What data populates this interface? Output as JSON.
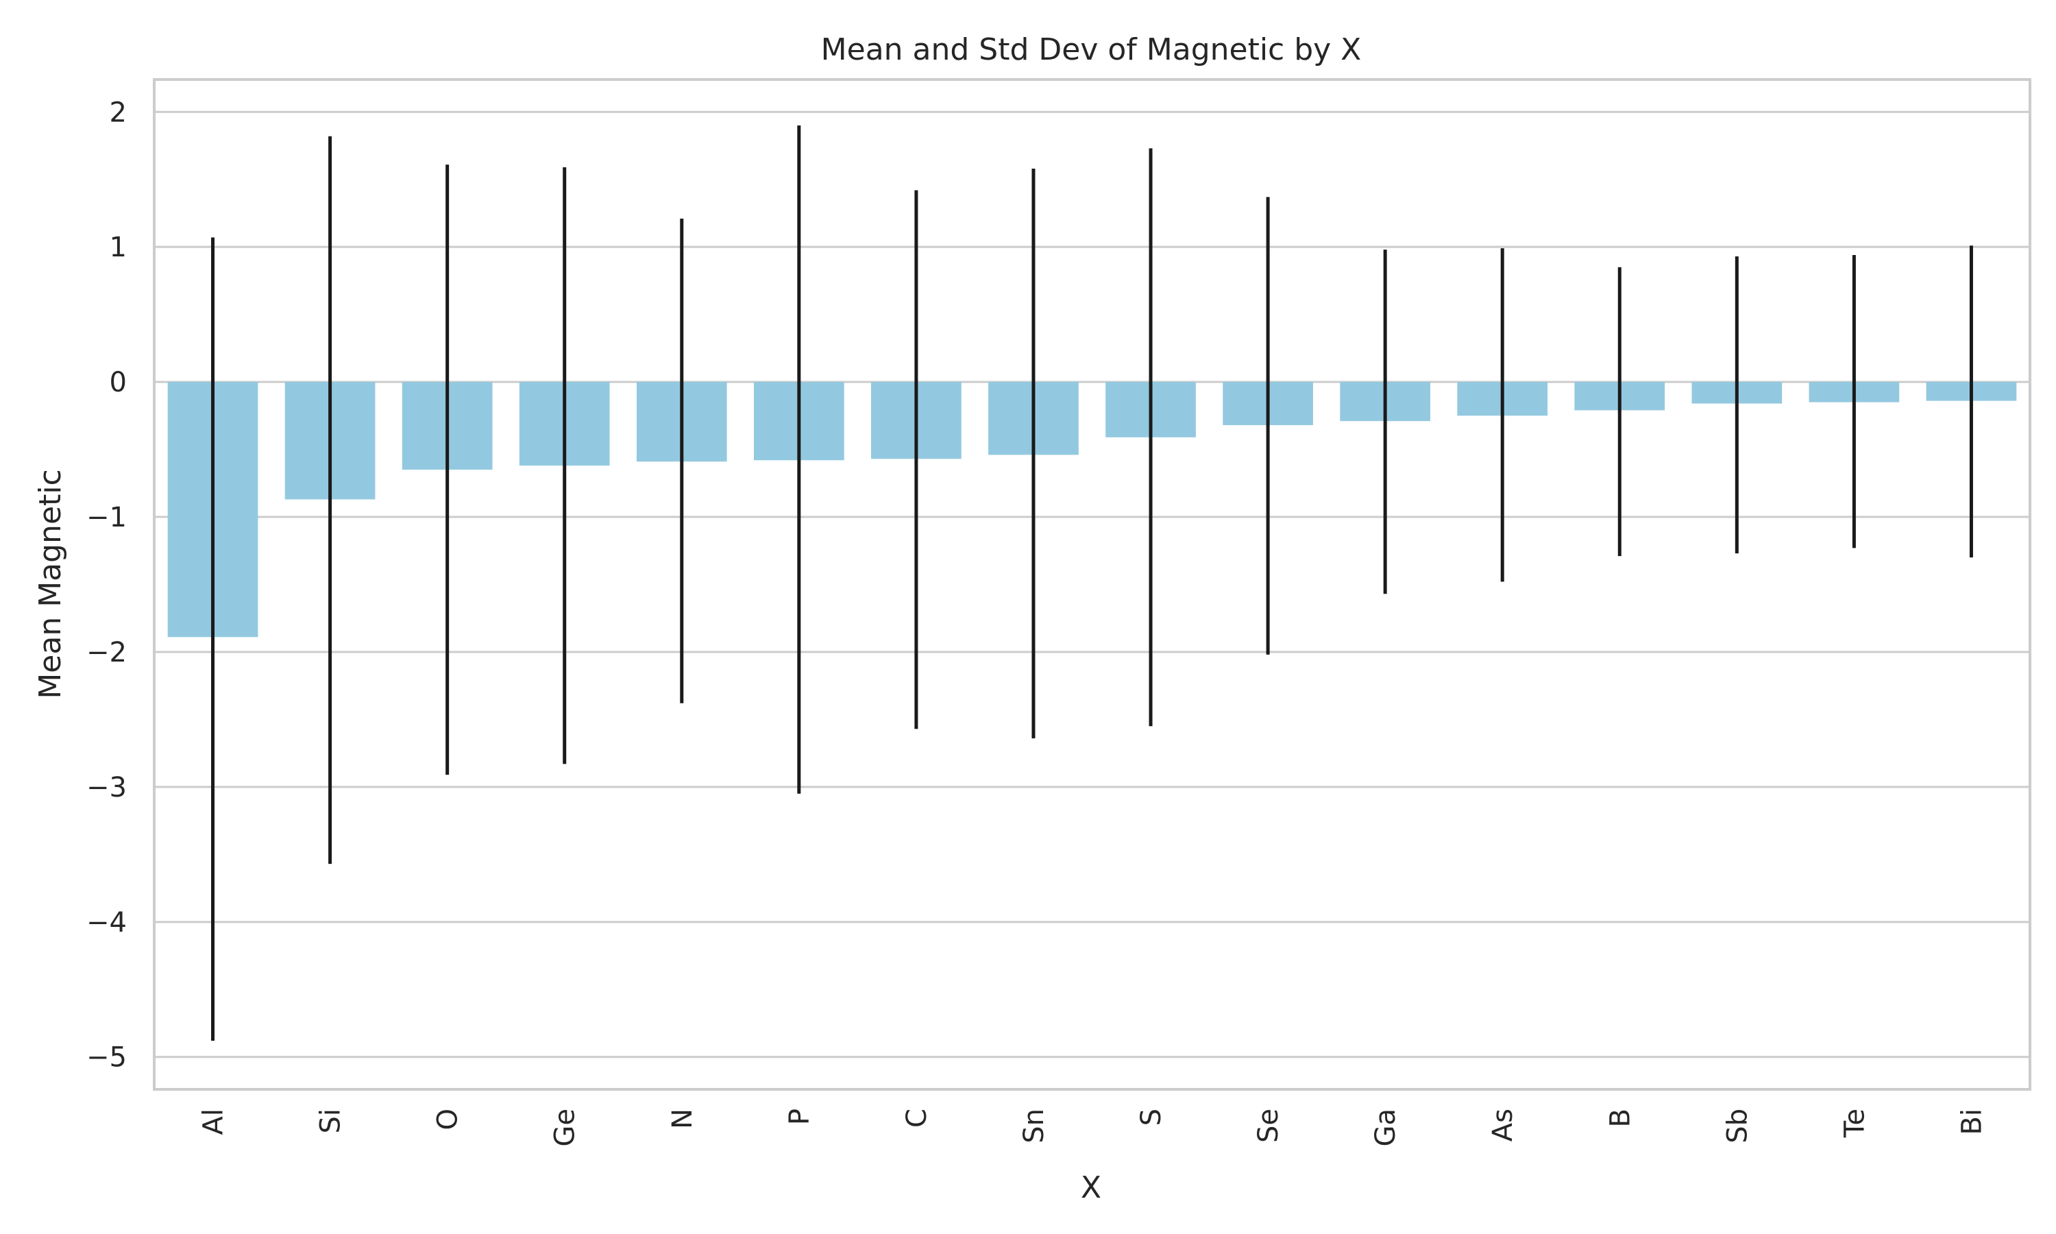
{
  "chart_data": {
    "type": "bar",
    "title": "Mean and Std Dev of Magnetic by X",
    "xlabel": "X",
    "ylabel": "Mean Magnetic",
    "categories": [
      "Al",
      "Si",
      "O",
      "Ge",
      "N",
      "P",
      "C",
      "Sn",
      "S",
      "Se",
      "Ga",
      "As",
      "B",
      "Sb",
      "Te",
      "Bi"
    ],
    "values": [
      -1.89,
      -0.87,
      -0.65,
      -0.62,
      -0.59,
      -0.58,
      -0.57,
      -0.54,
      -0.41,
      -0.32,
      -0.29,
      -0.25,
      -0.21,
      -0.16,
      -0.15,
      -0.14
    ],
    "error_low": [
      -4.88,
      -3.57,
      -2.91,
      -2.83,
      -2.38,
      -3.05,
      -2.57,
      -2.64,
      -2.55,
      -2.02,
      -1.57,
      -1.48,
      -1.29,
      -1.27,
      -1.23,
      -1.3
    ],
    "error_high": [
      1.07,
      1.82,
      1.61,
      1.59,
      1.21,
      1.9,
      1.42,
      1.58,
      1.73,
      1.37,
      0.98,
      0.99,
      0.85,
      0.93,
      0.94,
      1.01
    ],
    "ylim": [
      -5.24,
      2.24
    ],
    "yticks": [
      2,
      1,
      0,
      -1,
      -2,
      -3,
      -4,
      -5
    ],
    "ytick_labels": [
      "2",
      "1",
      "0",
      "−1",
      "−2",
      "−3",
      "−4",
      "−5"
    ],
    "grid": true,
    "bar_color": "#93c9e0",
    "error_color": "#1a1a1a"
  }
}
